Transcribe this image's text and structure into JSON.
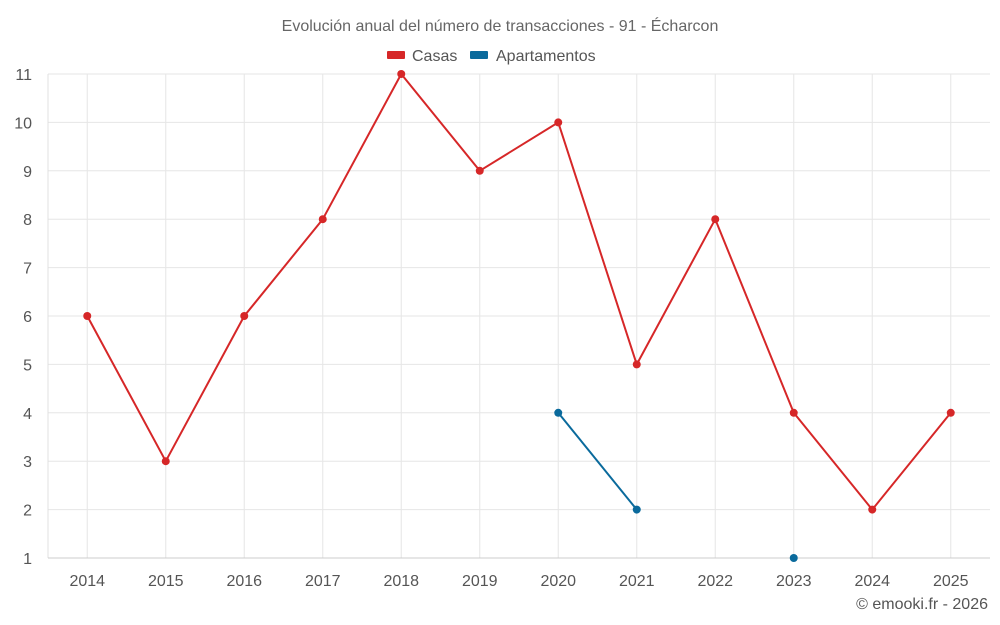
{
  "chart_data": {
    "type": "line",
    "title": "Evolución anual del número de transacciones - 91 - Écharcon",
    "xlabel": "",
    "ylabel": "",
    "categories": [
      "2014",
      "2015",
      "2016",
      "2017",
      "2018",
      "2019",
      "2020",
      "2021",
      "2022",
      "2023",
      "2024",
      "2025"
    ],
    "ylim": [
      1,
      11
    ],
    "yticks": [
      1,
      2,
      3,
      4,
      5,
      6,
      7,
      8,
      9,
      10,
      11
    ],
    "grid": true,
    "legend_position": "top-center",
    "series": [
      {
        "name": "Casas",
        "color": "#d62728",
        "values": [
          6,
          3,
          6,
          8,
          11,
          9,
          10,
          5,
          8,
          4,
          2,
          4
        ]
      },
      {
        "name": "Apartamentos",
        "color": "#0a6a9c",
        "values": [
          null,
          null,
          null,
          null,
          null,
          null,
          4,
          2,
          null,
          1,
          null,
          null
        ]
      }
    ],
    "credit": "© emooki.fr - 2026"
  }
}
